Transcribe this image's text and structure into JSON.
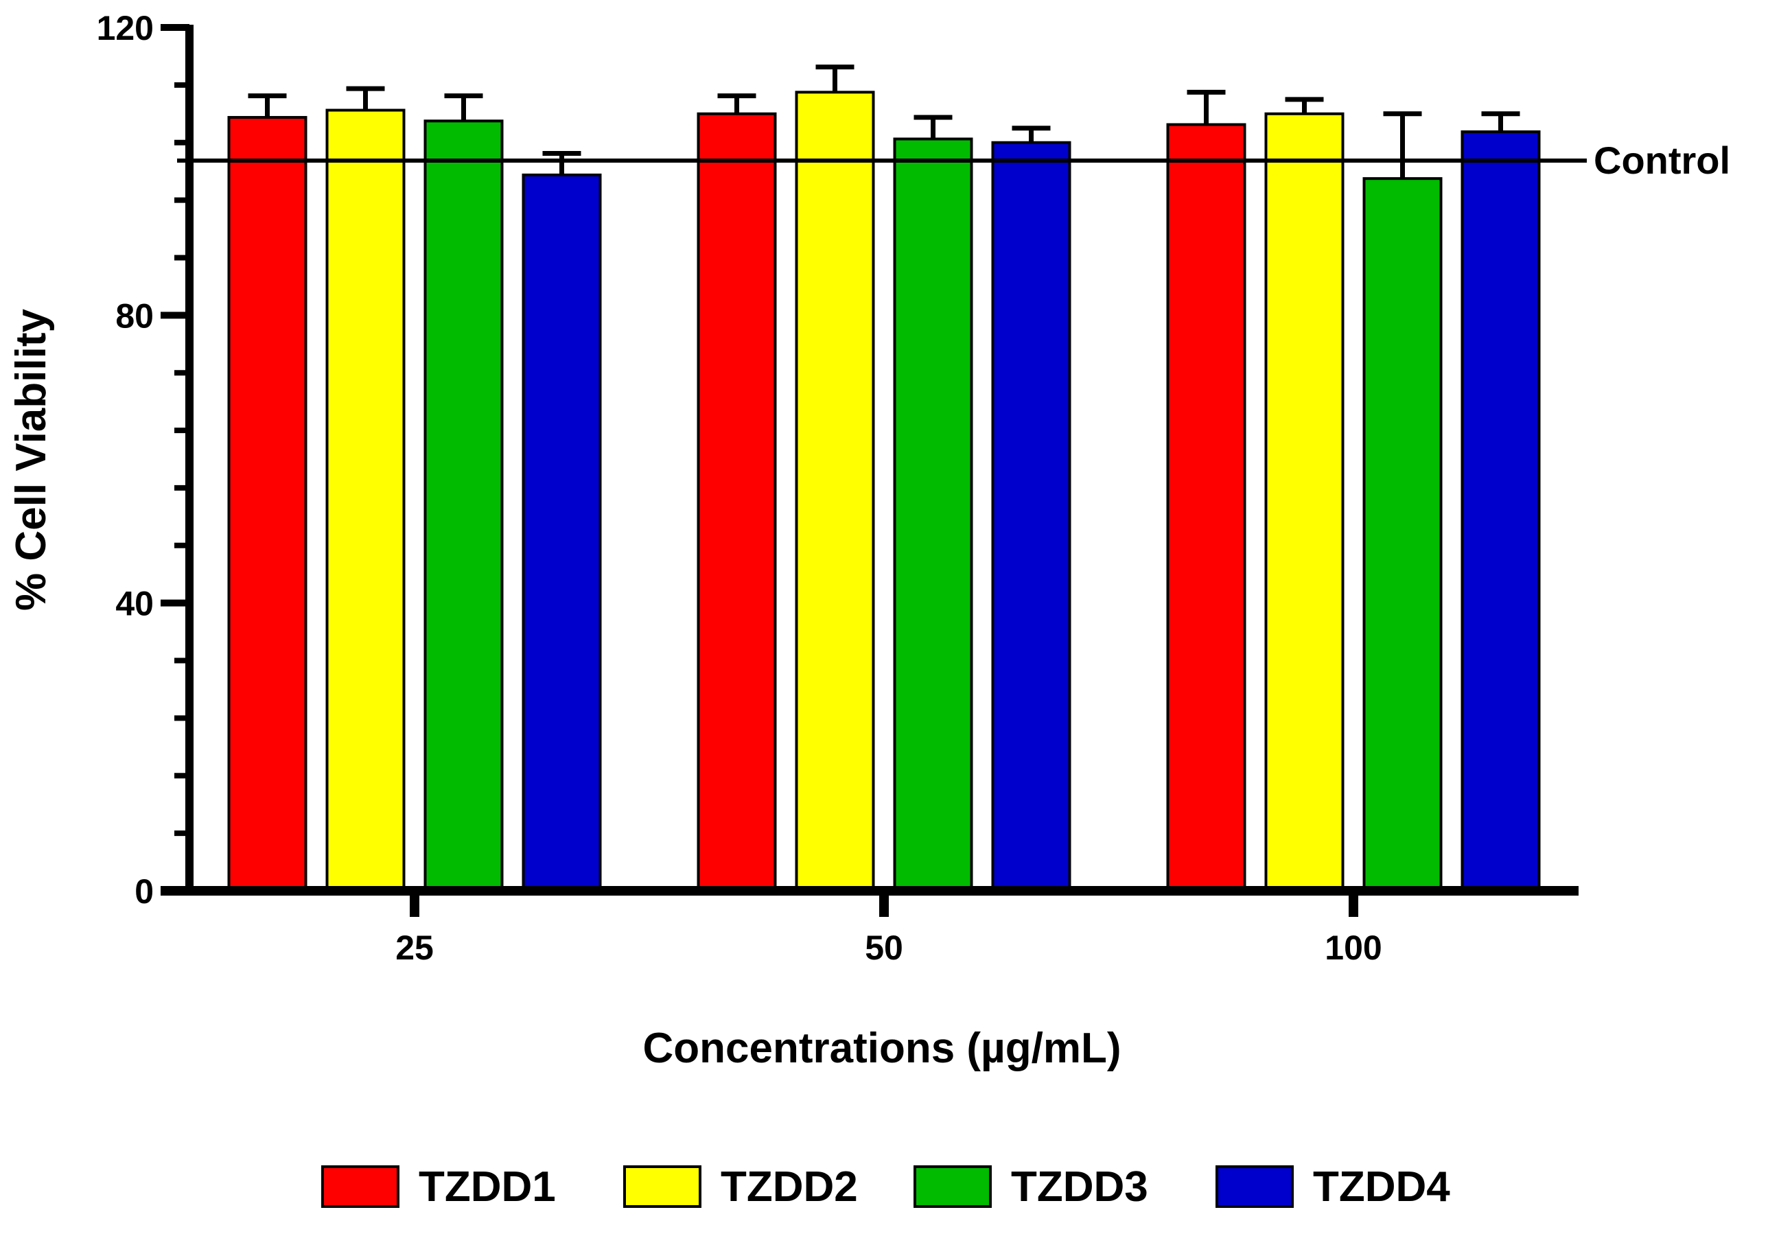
{
  "chart_data": {
    "type": "bar",
    "title": "",
    "xlabel": "Concentrations (µg/mL)",
    "ylabel": "% Cell Viability",
    "ylim": [
      0,
      120
    ],
    "yticks": [
      0,
      40,
      80,
      120
    ],
    "yminor_step": 8,
    "categories": [
      "25",
      "50",
      "100"
    ],
    "series": [
      {
        "name": "TZDD1",
        "color": "#ff0000",
        "values": [
          107.5,
          108,
          106.5
        ],
        "errors": [
          3,
          2.5,
          4.5
        ]
      },
      {
        "name": "TZDD2",
        "color": "#ffff00",
        "values": [
          108.5,
          111,
          108
        ],
        "errors": [
          3,
          3.5,
          2
        ]
      },
      {
        "name": "TZDD3",
        "color": "#00bb00",
        "values": [
          107,
          104.5,
          99
        ],
        "errors": [
          3.5,
          3,
          9
        ]
      },
      {
        "name": "TZDD4",
        "color": "#0000cc",
        "values": [
          99.5,
          104,
          105.5
        ],
        "errors": [
          3,
          2,
          2.5
        ]
      }
    ],
    "reference_line": {
      "label": "Control",
      "value": 101.5
    },
    "legend": {
      "position": "bottom"
    }
  }
}
